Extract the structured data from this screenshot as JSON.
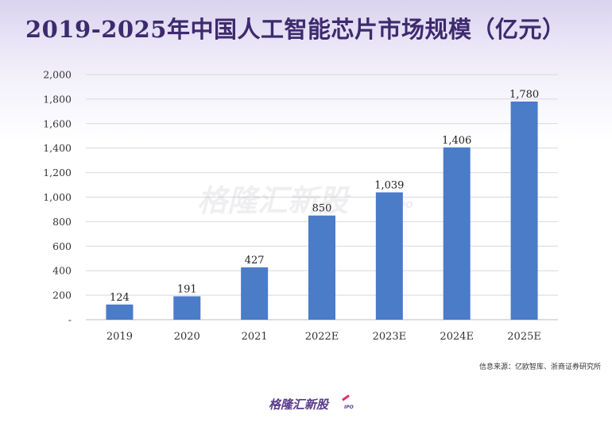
{
  "title": "2019-2025年中国人工智能芯片市场规模（亿元）",
  "chart_data": {
    "type": "bar",
    "title": "2019-2025年中国人工智能芯片市场规模（亿元）",
    "categories": [
      "2019",
      "2020",
      "2021",
      "2022E",
      "2023E",
      "2024E",
      "2025E"
    ],
    "values": [
      124,
      191,
      427,
      850,
      1039,
      1406,
      1780
    ],
    "value_labels": [
      "124",
      "191",
      "427",
      "850",
      "1,039",
      "1,406",
      "1,780"
    ],
    "yticks": [
      0,
      200,
      400,
      600,
      800,
      1000,
      1200,
      1400,
      1600,
      1800,
      2000
    ],
    "ytick_labels": [
      "-",
      "200",
      "400",
      "600",
      "800",
      "1,000",
      "1,200",
      "1,400",
      "1,600",
      "1,800",
      "2,000"
    ],
    "ylim": [
      0,
      2000
    ],
    "xlabel": "",
    "ylabel": "",
    "grid": true,
    "bar_color": "#4a7cc8"
  },
  "watermark": {
    "text": "格隆汇新股",
    "suffix": "IPO"
  },
  "source": "信息来源：亿欧智库、浙商证券研究所",
  "footer": {
    "brand": "格隆汇新股",
    "suffix": "IPO"
  }
}
